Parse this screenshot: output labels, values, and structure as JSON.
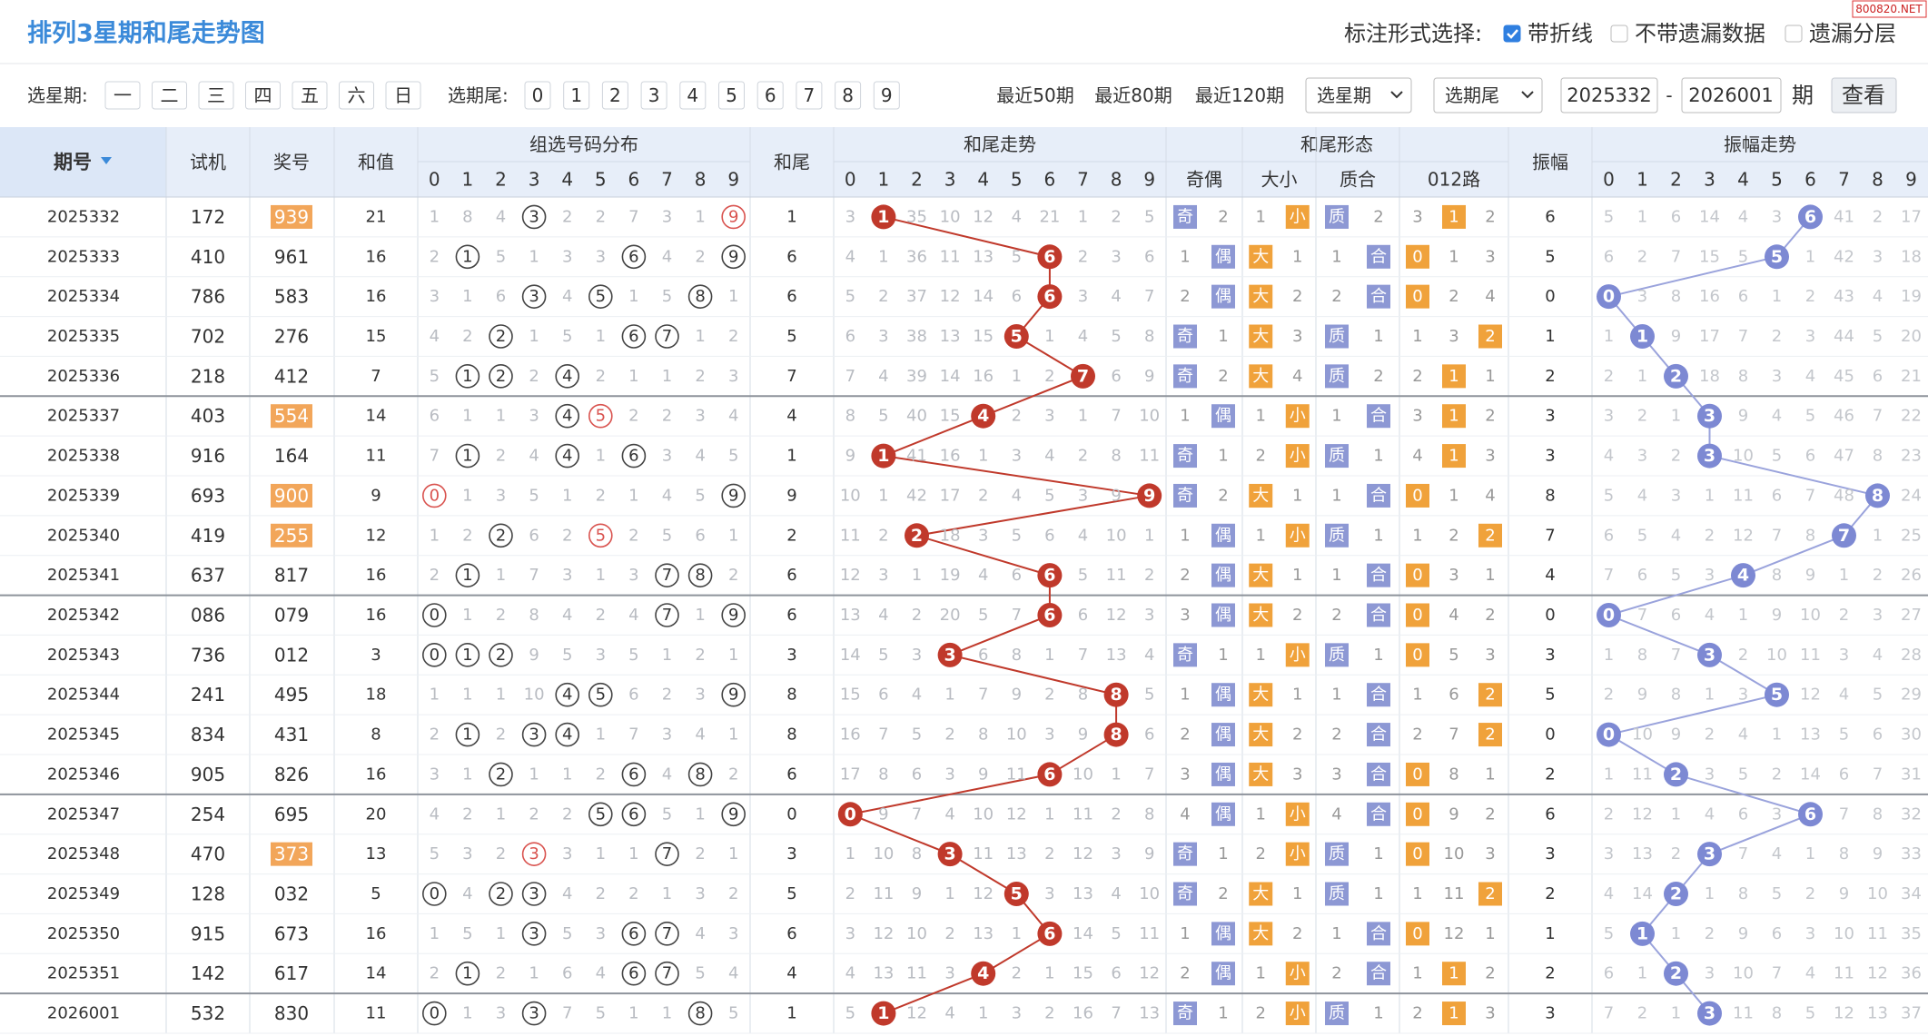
{
  "header": {
    "title": "排列3星期和尾走势图",
    "mark_label": "标注形式选择:",
    "options": [
      {
        "label": "带折线",
        "checked": true
      },
      {
        "label": "不带遗漏数据",
        "checked": false
      },
      {
        "label": "遗漏分层",
        "checked": false
      }
    ],
    "watermark": "800820.NET"
  },
  "filters": {
    "weekday_label": "选星期:",
    "weekdays": [
      "一",
      "二",
      "三",
      "四",
      "五",
      "六",
      "日"
    ],
    "tail_label": "选期尾:",
    "tails": [
      "0",
      "1",
      "2",
      "3",
      "4",
      "5",
      "6",
      "7",
      "8",
      "9"
    ],
    "recent": [
      "最近50期",
      "最近80期",
      "最近120期"
    ],
    "selects": [
      "选星期",
      "选期尾"
    ],
    "from": "2025332",
    "sep": "-",
    "to": "2026001",
    "unit": "期",
    "button": "查看"
  },
  "table": {
    "columns": {
      "period": "期号",
      "trial": "试机",
      "number": "奖号",
      "sum": "和值",
      "dist": "组选号码分布",
      "tail": "和尾",
      "tail_trend": "和尾走势",
      "form": "和尾形态",
      "form_groups": [
        "奇偶",
        "大小",
        "质合",
        "012路"
      ],
      "amp": "振幅",
      "amp_trend": "振幅走势",
      "digits": [
        "0",
        "1",
        "2",
        "3",
        "4",
        "5",
        "6",
        "7",
        "8",
        "9"
      ]
    },
    "rows": [
      {
        "period": "2025332",
        "trial": "172",
        "number": "939",
        "sum": 21,
        "dist": [
          1,
          8,
          4,
          3,
          2,
          2,
          7,
          3,
          1,
          9
        ],
        "tail": 1,
        "tail_trend": [
          3,
          1,
          35,
          10,
          12,
          4,
          21,
          1,
          2,
          5
        ],
        "form": [
          "奇",
          2,
          1,
          "小",
          "质",
          2,
          3,
          1,
          2
        ],
        "amp": 6,
        "amp_trend": [
          5,
          1,
          6,
          14,
          4,
          3,
          6,
          41,
          2,
          17
        ]
      },
      {
        "period": "2025333",
        "trial": "410",
        "number": "961",
        "sum": 16,
        "dist": [
          2,
          1,
          5,
          1,
          3,
          3,
          6,
          4,
          2,
          9
        ],
        "tail": 6,
        "tail_trend": [
          4,
          1,
          36,
          11,
          13,
          5,
          6,
          2,
          3,
          6
        ],
        "form": [
          1,
          "偶",
          "大",
          1,
          1,
          "合",
          0,
          1,
          3
        ],
        "amp": 5,
        "amp_trend": [
          6,
          2,
          7,
          15,
          5,
          5,
          1,
          42,
          3,
          18
        ]
      },
      {
        "period": "2025334",
        "trial": "786",
        "number": "583",
        "sum": 16,
        "dist": [
          3,
          1,
          6,
          3,
          4,
          5,
          1,
          5,
          8,
          1
        ],
        "tail": 6,
        "tail_trend": [
          5,
          2,
          37,
          12,
          14,
          6,
          6,
          3,
          4,
          7
        ],
        "form": [
          2,
          "偶",
          "大",
          2,
          2,
          "合",
          0,
          2,
          4
        ],
        "amp": 0,
        "amp_trend": [
          0,
          3,
          8,
          16,
          6,
          1,
          2,
          43,
          4,
          19
        ]
      },
      {
        "period": "2025335",
        "trial": "702",
        "number": "276",
        "sum": 15,
        "dist": [
          4,
          2,
          2,
          1,
          5,
          1,
          6,
          7,
          1,
          2
        ],
        "tail": 5,
        "tail_trend": [
          6,
          3,
          38,
          13,
          15,
          5,
          1,
          4,
          5,
          8
        ],
        "form": [
          "奇",
          1,
          "大",
          3,
          "质",
          1,
          1,
          3,
          2
        ],
        "amp": 1,
        "amp_trend": [
          1,
          1,
          9,
          17,
          7,
          2,
          3,
          44,
          5,
          20
        ]
      },
      {
        "period": "2025336",
        "trial": "218",
        "number": "412",
        "sum": 7,
        "dist": [
          5,
          1,
          2,
          2,
          4,
          2,
          1,
          1,
          2,
          3
        ],
        "tail": 7,
        "tail_trend": [
          7,
          4,
          39,
          14,
          16,
          1,
          2,
          7,
          6,
          9
        ],
        "form": [
          "奇",
          2,
          "大",
          4,
          "质",
          2,
          2,
          1,
          1
        ],
        "amp": 2,
        "amp_trend": [
          2,
          1,
          2,
          18,
          8,
          3,
          4,
          45,
          6,
          21
        ]
      },
      {
        "period": "2025337",
        "trial": "403",
        "number": "554",
        "sum": 14,
        "dist": [
          6,
          1,
          1,
          3,
          4,
          5,
          2,
          2,
          3,
          4
        ],
        "tail": 4,
        "tail_trend": [
          8,
          5,
          40,
          15,
          4,
          2,
          3,
          1,
          7,
          10
        ],
        "form": [
          1,
          "偶",
          1,
          "小",
          1,
          "合",
          3,
          1,
          2
        ],
        "amp": 3,
        "amp_trend": [
          3,
          2,
          1,
          3,
          9,
          4,
          5,
          46,
          7,
          22
        ]
      },
      {
        "period": "2025338",
        "trial": "916",
        "number": "164",
        "sum": 11,
        "dist": [
          7,
          1,
          2,
          4,
          4,
          1,
          6,
          3,
          4,
          5
        ],
        "tail": 1,
        "tail_trend": [
          9,
          1,
          41,
          16,
          1,
          3,
          4,
          2,
          8,
          11
        ],
        "form": [
          "奇",
          1,
          2,
          "小",
          "质",
          1,
          4,
          1,
          3
        ],
        "amp": 3,
        "amp_trend": [
          4,
          3,
          2,
          3,
          10,
          5,
          6,
          47,
          8,
          23
        ]
      },
      {
        "period": "2025339",
        "trial": "693",
        "number": "900",
        "sum": 9,
        "dist": [
          0,
          1,
          3,
          5,
          1,
          2,
          1,
          4,
          5,
          9
        ],
        "tail": 9,
        "tail_trend": [
          10,
          1,
          42,
          17,
          2,
          4,
          5,
          3,
          9,
          9
        ],
        "form": [
          "奇",
          2,
          "大",
          1,
          1,
          "合",
          0,
          1,
          4
        ],
        "amp": 8,
        "amp_trend": [
          5,
          4,
          3,
          1,
          11,
          6,
          7,
          48,
          8,
          24
        ]
      },
      {
        "period": "2025340",
        "trial": "419",
        "number": "255",
        "sum": 12,
        "dist": [
          1,
          2,
          2,
          6,
          2,
          5,
          2,
          5,
          6,
          1
        ],
        "tail": 2,
        "tail_trend": [
          11,
          2,
          2,
          18,
          3,
          5,
          6,
          4,
          10,
          1
        ],
        "form": [
          1,
          "偶",
          1,
          "小",
          "质",
          1,
          1,
          2,
          2
        ],
        "amp": 7,
        "amp_trend": [
          6,
          5,
          4,
          2,
          12,
          7,
          8,
          7,
          1,
          25
        ]
      },
      {
        "period": "2025341",
        "trial": "637",
        "number": "817",
        "sum": 16,
        "dist": [
          2,
          1,
          1,
          7,
          3,
          1,
          3,
          7,
          8,
          2
        ],
        "tail": 6,
        "tail_trend": [
          12,
          3,
          1,
          19,
          4,
          6,
          6,
          5,
          11,
          2
        ],
        "form": [
          2,
          "偶",
          "大",
          1,
          1,
          "合",
          0,
          3,
          1
        ],
        "amp": 4,
        "amp_trend": [
          7,
          6,
          5,
          3,
          4,
          8,
          9,
          1,
          2,
          26
        ]
      },
      {
        "period": "2025342",
        "trial": "086",
        "number": "079",
        "sum": 16,
        "dist": [
          0,
          1,
          2,
          8,
          4,
          2,
          4,
          7,
          1,
          9
        ],
        "tail": 6,
        "tail_trend": [
          13,
          4,
          2,
          20,
          5,
          7,
          6,
          6,
          12,
          3
        ],
        "form": [
          3,
          "偶",
          "大",
          2,
          2,
          "合",
          0,
          4,
          2
        ],
        "amp": 0,
        "amp_trend": [
          0,
          7,
          6,
          4,
          1,
          9,
          10,
          2,
          3,
          27
        ]
      },
      {
        "period": "2025343",
        "trial": "736",
        "number": "012",
        "sum": 3,
        "dist": [
          0,
          1,
          2,
          9,
          5,
          3,
          5,
          1,
          2,
          1
        ],
        "tail": 3,
        "tail_trend": [
          14,
          5,
          3,
          3,
          6,
          8,
          1,
          7,
          13,
          4
        ],
        "form": [
          "奇",
          1,
          1,
          "小",
          "质",
          1,
          0,
          5,
          3
        ],
        "amp": 3,
        "amp_trend": [
          1,
          8,
          7,
          3,
          2,
          10,
          11,
          3,
          4,
          28
        ]
      },
      {
        "period": "2025344",
        "trial": "241",
        "number": "495",
        "sum": 18,
        "dist": [
          1,
          1,
          1,
          10,
          4,
          5,
          6,
          2,
          3,
          9
        ],
        "tail": 8,
        "tail_trend": [
          15,
          6,
          4,
          1,
          7,
          9,
          2,
          8,
          8,
          5
        ],
        "form": [
          1,
          "偶",
          "大",
          1,
          1,
          "合",
          1,
          6,
          2
        ],
        "amp": 5,
        "amp_trend": [
          2,
          9,
          8,
          1,
          3,
          5,
          12,
          4,
          5,
          29
        ]
      },
      {
        "period": "2025345",
        "trial": "834",
        "number": "431",
        "sum": 8,
        "dist": [
          2,
          1,
          2,
          3,
          4,
          1,
          7,
          3,
          4,
          1
        ],
        "tail": 8,
        "tail_trend": [
          16,
          7,
          5,
          2,
          8,
          10,
          3,
          9,
          8,
          6
        ],
        "form": [
          2,
          "偶",
          "大",
          2,
          2,
          "合",
          2,
          7,
          2
        ],
        "amp": 0,
        "amp_trend": [
          0,
          10,
          9,
          2,
          4,
          1,
          13,
          5,
          6,
          30
        ]
      },
      {
        "period": "2025346",
        "trial": "905",
        "number": "826",
        "sum": 16,
        "dist": [
          3,
          1,
          2,
          1,
          1,
          2,
          6,
          4,
          8,
          2
        ],
        "tail": 6,
        "tail_trend": [
          17,
          8,
          6,
          3,
          9,
          11,
          6,
          10,
          1,
          7
        ],
        "form": [
          3,
          "偶",
          "大",
          3,
          3,
          "合",
          0,
          8,
          1
        ],
        "amp": 2,
        "amp_trend": [
          1,
          11,
          2,
          3,
          5,
          2,
          14,
          6,
          7,
          31
        ]
      },
      {
        "period": "2025347",
        "trial": "254",
        "number": "695",
        "sum": 20,
        "dist": [
          4,
          2,
          1,
          2,
          2,
          5,
          6,
          5,
          1,
          9
        ],
        "tail": 0,
        "tail_trend": [
          0,
          9,
          7,
          4,
          10,
          12,
          1,
          11,
          2,
          8
        ],
        "form": [
          4,
          "偶",
          1,
          "小",
          4,
          "合",
          0,
          9,
          2
        ],
        "amp": 6,
        "amp_trend": [
          2,
          12,
          1,
          4,
          6,
          3,
          6,
          7,
          8,
          32
        ]
      },
      {
        "period": "2025348",
        "trial": "470",
        "number": "373",
        "sum": 13,
        "dist": [
          5,
          3,
          2,
          3,
          3,
          1,
          1,
          7,
          2,
          1
        ],
        "tail": 3,
        "tail_trend": [
          1,
          10,
          8,
          3,
          11,
          13,
          2,
          12,
          3,
          9
        ],
        "form": [
          "奇",
          1,
          2,
          "小",
          "质",
          1,
          0,
          10,
          3
        ],
        "amp": 3,
        "amp_trend": [
          3,
          13,
          2,
          3,
          7,
          4,
          1,
          8,
          9,
          33
        ]
      },
      {
        "period": "2025349",
        "trial": "128",
        "number": "032",
        "sum": 5,
        "dist": [
          0,
          4,
          2,
          3,
          4,
          2,
          2,
          1,
          3,
          2
        ],
        "tail": 5,
        "tail_trend": [
          2,
          11,
          9,
          1,
          12,
          5,
          3,
          13,
          4,
          10
        ],
        "form": [
          "奇",
          2,
          "大",
          1,
          "质",
          1,
          1,
          11,
          2
        ],
        "amp": 2,
        "amp_trend": [
          4,
          14,
          2,
          1,
          8,
          5,
          2,
          9,
          10,
          34
        ]
      },
      {
        "period": "2025350",
        "trial": "915",
        "number": "673",
        "sum": 16,
        "dist": [
          1,
          5,
          1,
          3,
          5,
          3,
          6,
          7,
          4,
          3
        ],
        "tail": 6,
        "tail_trend": [
          3,
          12,
          10,
          2,
          13,
          1,
          6,
          14,
          5,
          11
        ],
        "form": [
          1,
          "偶",
          "大",
          2,
          1,
          "合",
          0,
          12,
          1
        ],
        "amp": 1,
        "amp_trend": [
          5,
          1,
          1,
          2,
          9,
          6,
          3,
          10,
          11,
          35
        ]
      },
      {
        "period": "2025351",
        "trial": "142",
        "number": "617",
        "sum": 14,
        "dist": [
          2,
          1,
          2,
          1,
          6,
          4,
          6,
          7,
          5,
          4
        ],
        "tail": 4,
        "tail_trend": [
          4,
          13,
          11,
          3,
          4,
          2,
          1,
          15,
          6,
          12
        ],
        "form": [
          2,
          "偶",
          1,
          "小",
          2,
          "合",
          1,
          1,
          2
        ],
        "amp": 2,
        "amp_trend": [
          6,
          1,
          2,
          3,
          10,
          7,
          4,
          11,
          12,
          36
        ]
      },
      {
        "period": "2026001",
        "trial": "532",
        "number": "830",
        "sum": 11,
        "dist": [
          0,
          1,
          3,
          3,
          7,
          5,
          1,
          1,
          8,
          5
        ],
        "tail": 1,
        "tail_trend": [
          5,
          1,
          12,
          4,
          1,
          3,
          2,
          16,
          7,
          13
        ],
        "form": [
          "奇",
          1,
          2,
          "小",
          "质",
          1,
          2,
          1,
          3
        ],
        "amp": 3,
        "amp_trend": [
          7,
          2,
          1,
          3,
          11,
          8,
          5,
          12,
          13,
          37
        ]
      }
    ]
  }
}
